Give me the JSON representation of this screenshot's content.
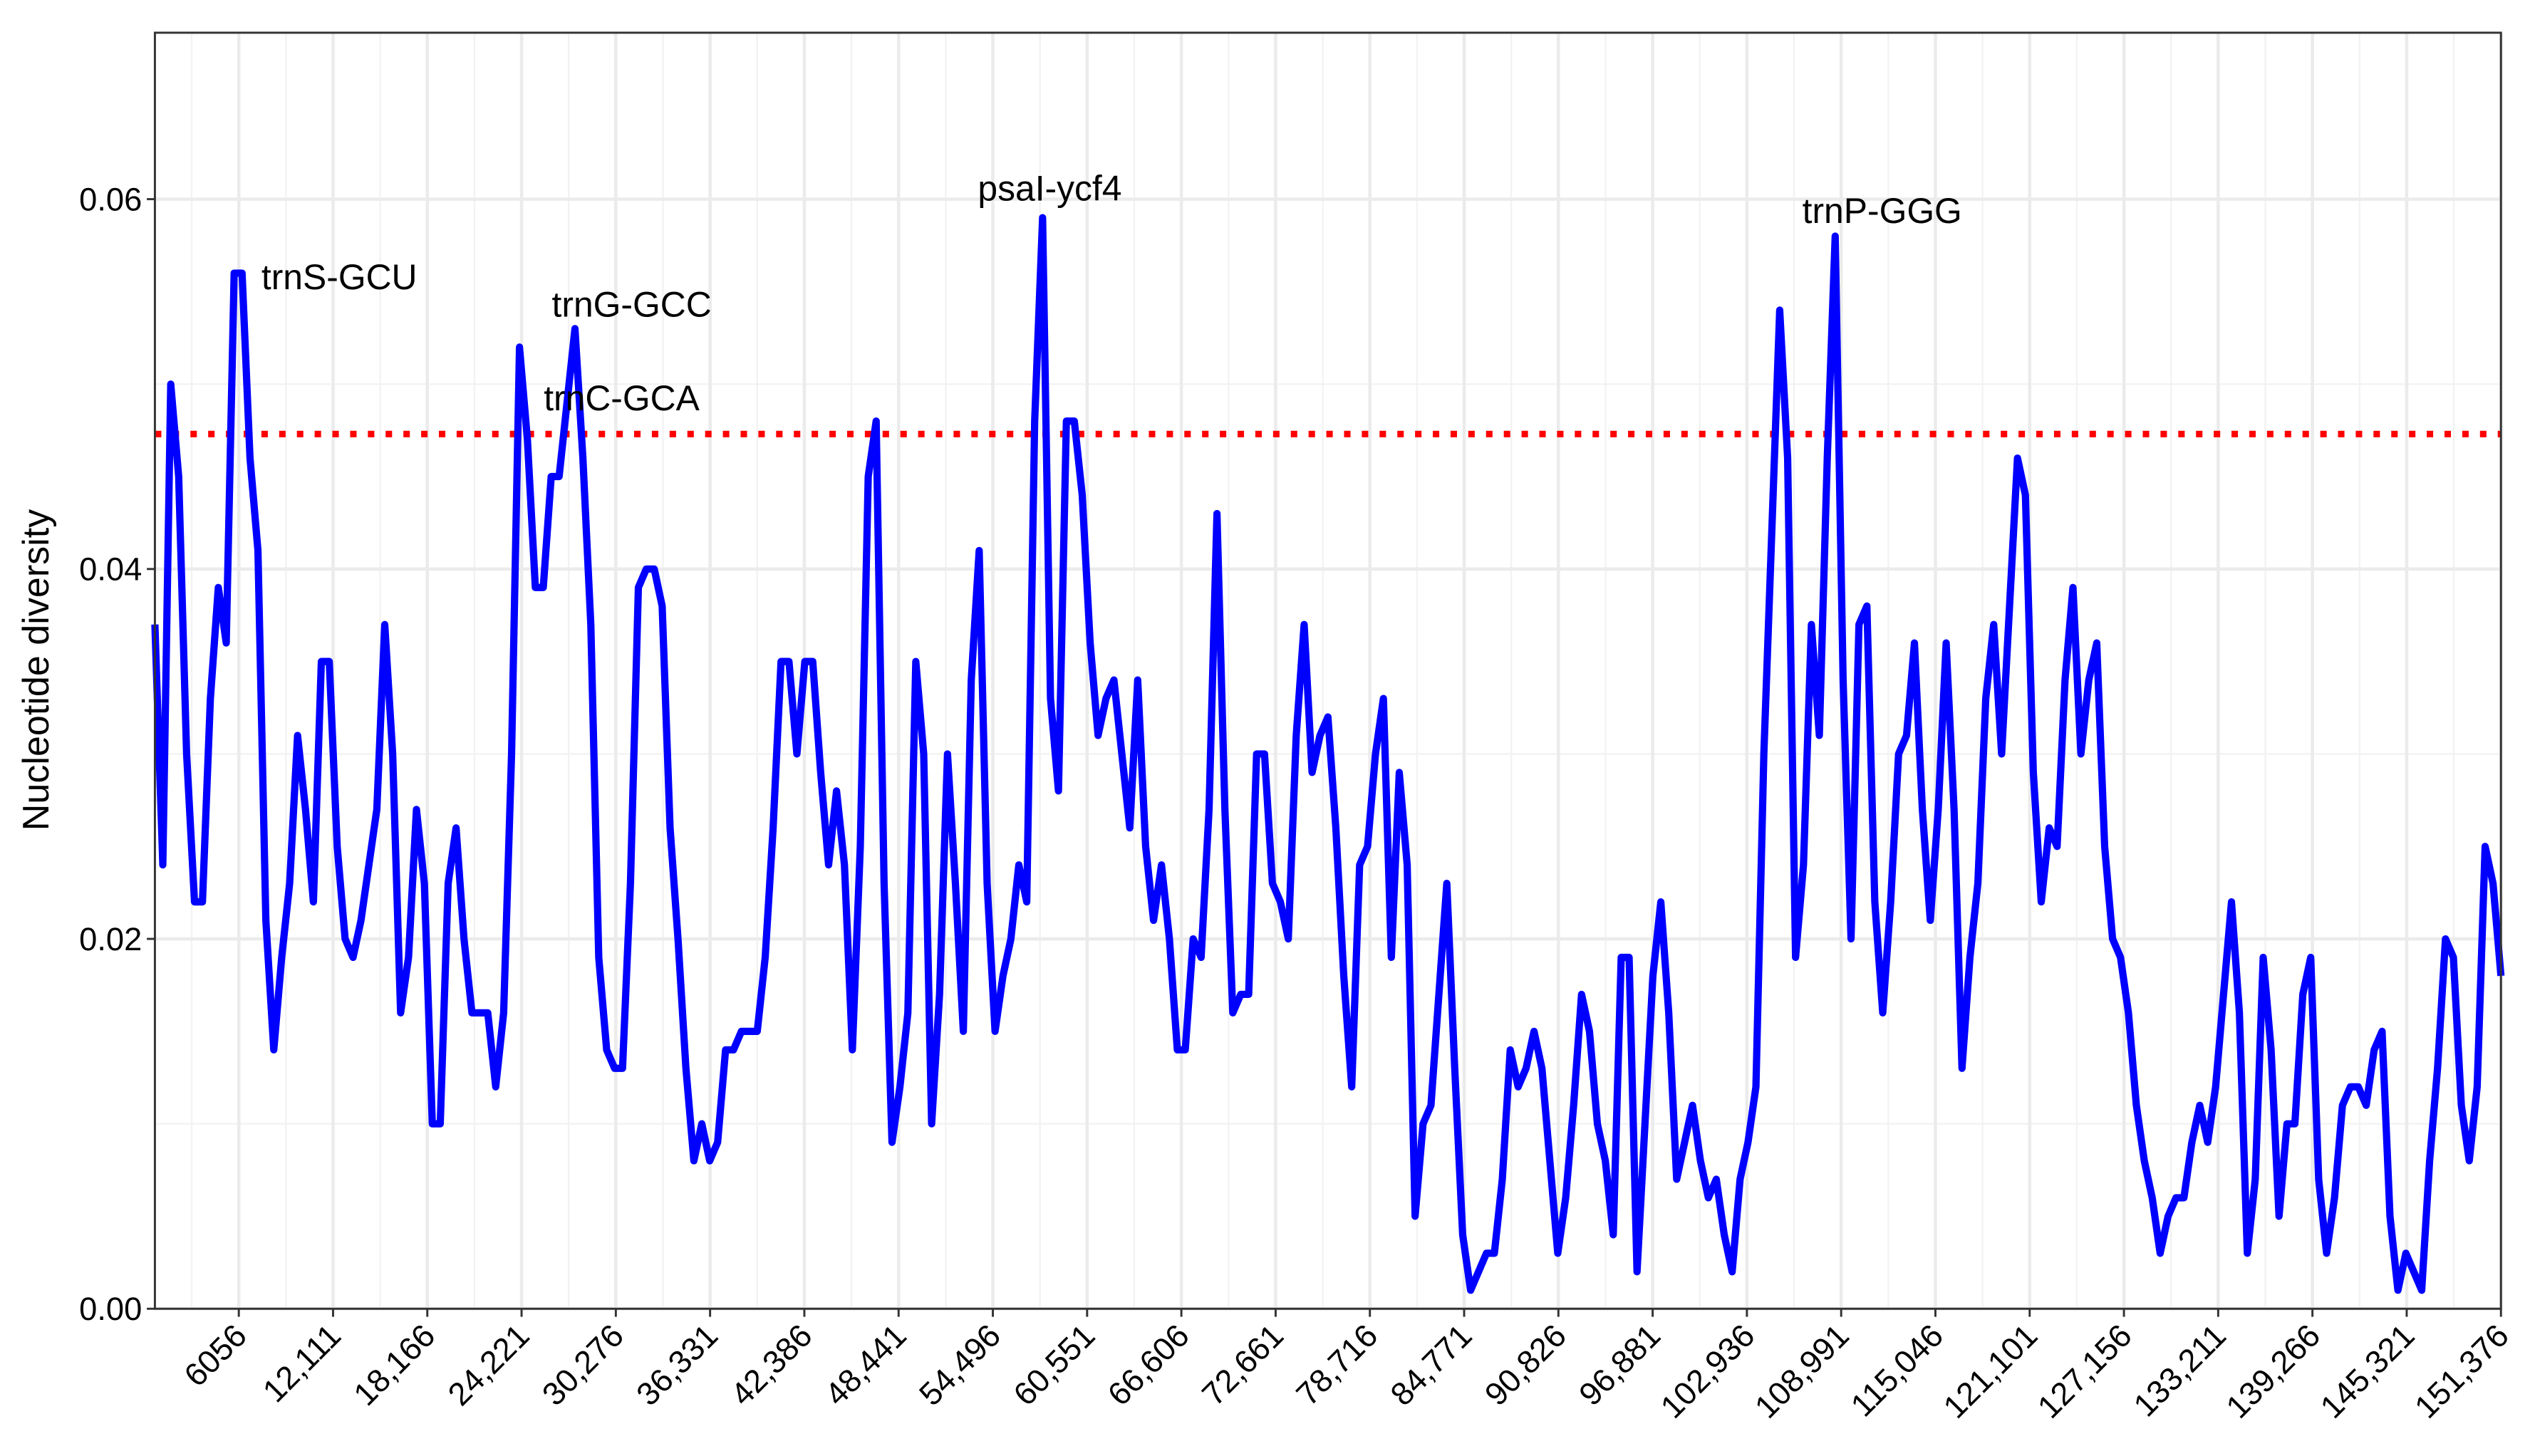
{
  "chart_data": {
    "type": "line",
    "title": "",
    "xlabel": "",
    "ylabel": "Nucleotide diversity",
    "xlim": [
      666,
      151376
    ],
    "ylim": [
      0,
      0.069
    ],
    "grid": true,
    "x_ticks": [
      6056,
      12111,
      18166,
      24221,
      30276,
      36331,
      42386,
      48441,
      54496,
      60551,
      66606,
      72661,
      78716,
      84771,
      90826,
      96881,
      102936,
      108991,
      115046,
      121101,
      127156,
      133211,
      139266,
      145321,
      151376
    ],
    "x_tick_labels": [
      "6056",
      "12,111",
      "18,166",
      "24,221",
      "30,276",
      "36,331",
      "42,386",
      "48,441",
      "54,496",
      "60,551",
      "66,606",
      "72,661",
      "78,716",
      "84,771",
      "90,826",
      "96,881",
      "102,936",
      "108,991",
      "115,046",
      "121,101",
      "127,156",
      "133,211",
      "139,266",
      "145,321",
      "151,376"
    ],
    "y_ticks": [
      0,
      0.02,
      0.04,
      0.06
    ],
    "y_tick_labels": [
      "0.00",
      "0.02",
      "0.04",
      "0.06"
    ],
    "series": [
      {
        "color": "#0000ff",
        "x_first": 666,
        "x_last": 151376,
        "values": [
          0.037,
          0.024,
          0.05,
          0.045,
          0.03,
          0.022,
          0.022,
          0.033,
          0.039,
          0.036,
          0.056,
          0.056,
          0.046,
          0.041,
          0.021,
          0.014,
          0.019,
          0.023,
          0.031,
          0.027,
          0.022,
          0.035,
          0.035,
          0.025,
          0.02,
          0.019,
          0.021,
          0.024,
          0.027,
          0.037,
          0.03,
          0.016,
          0.019,
          0.027,
          0.023,
          0.01,
          0.01,
          0.023,
          0.026,
          0.02,
          0.016,
          0.016,
          0.016,
          0.012,
          0.016,
          0.03,
          0.052,
          0.047,
          0.039,
          0.039,
          0.045,
          0.045,
          0.049,
          0.053,
          0.046,
          0.037,
          0.019,
          0.014,
          0.013,
          0.013,
          0.023,
          0.039,
          0.04,
          0.04,
          0.038,
          0.026,
          0.02,
          0.013,
          0.008,
          0.01,
          0.008,
          0.009,
          0.014,
          0.014,
          0.015,
          0.015,
          0.015,
          0.019,
          0.026,
          0.035,
          0.035,
          0.03,
          0.035,
          0.035,
          0.029,
          0.024,
          0.028,
          0.024,
          0.014,
          0.025,
          0.045,
          0.048,
          0.023,
          0.009,
          0.012,
          0.016,
          0.035,
          0.03,
          0.01,
          0.017,
          0.03,
          0.023,
          0.015,
          0.034,
          0.041,
          0.023,
          0.015,
          0.018,
          0.02,
          0.024,
          0.022,
          0.048,
          0.059,
          0.033,
          0.028,
          0.048,
          0.048,
          0.044,
          0.036,
          0.031,
          0.033,
          0.034,
          0.03,
          0.026,
          0.034,
          0.025,
          0.021,
          0.024,
          0.02,
          0.014,
          0.014,
          0.02,
          0.019,
          0.027,
          0.043,
          0.027,
          0.016,
          0.017,
          0.017,
          0.03,
          0.03,
          0.023,
          0.022,
          0.02,
          0.031,
          0.037,
          0.029,
          0.031,
          0.032,
          0.026,
          0.018,
          0.012,
          0.024,
          0.025,
          0.03,
          0.033,
          0.019,
          0.029,
          0.024,
          0.005,
          0.01,
          0.011,
          0.017,
          0.023,
          0.013,
          0.004,
          0.001,
          0.002,
          0.003,
          0.003,
          0.007,
          0.014,
          0.012,
          0.013,
          0.015,
          0.013,
          0.008,
          0.003,
          0.006,
          0.011,
          0.017,
          0.015,
          0.01,
          0.008,
          0.004,
          0.019,
          0.019,
          0.002,
          0.01,
          0.018,
          0.022,
          0.016,
          0.007,
          0.009,
          0.011,
          0.008,
          0.006,
          0.007,
          0.004,
          0.002,
          0.007,
          0.009,
          0.012,
          0.03,
          0.042,
          0.054,
          0.046,
          0.019,
          0.024,
          0.037,
          0.031,
          0.046,
          0.058,
          0.034,
          0.02,
          0.037,
          0.038,
          0.022,
          0.016,
          0.022,
          0.03,
          0.031,
          0.036,
          0.027,
          0.021,
          0.027,
          0.036,
          0.027,
          0.013,
          0.019,
          0.023,
          0.033,
          0.037,
          0.03,
          0.038,
          0.046,
          0.044,
          0.029,
          0.022,
          0.026,
          0.025,
          0.034,
          0.039,
          0.03,
          0.034,
          0.036,
          0.025,
          0.02,
          0.019,
          0.016,
          0.011,
          0.008,
          0.006,
          0.003,
          0.005,
          0.006,
          0.006,
          0.009,
          0.011,
          0.009,
          0.012,
          0.017,
          0.022,
          0.016,
          0.003,
          0.007,
          0.019,
          0.014,
          0.005,
          0.01,
          0.01,
          0.017,
          0.019,
          0.007,
          0.003,
          0.006,
          0.011,
          0.012,
          0.012,
          0.011,
          0.014,
          0.015,
          0.005,
          0.001,
          0.003,
          0.002,
          0.001,
          0.008,
          0.013,
          0.02,
          0.019,
          0.011,
          0.008,
          0.012,
          0.025,
          0.023,
          0.018
        ]
      }
    ],
    "threshold": {
      "value": 0.0473,
      "color": "#ff0000",
      "style": "dotted"
    },
    "annotations": [
      "trnS-GCU",
      "trnG-GCC",
      "trnC-GCA",
      "psaI-ycf4",
      "trnP-GGG"
    ]
  }
}
